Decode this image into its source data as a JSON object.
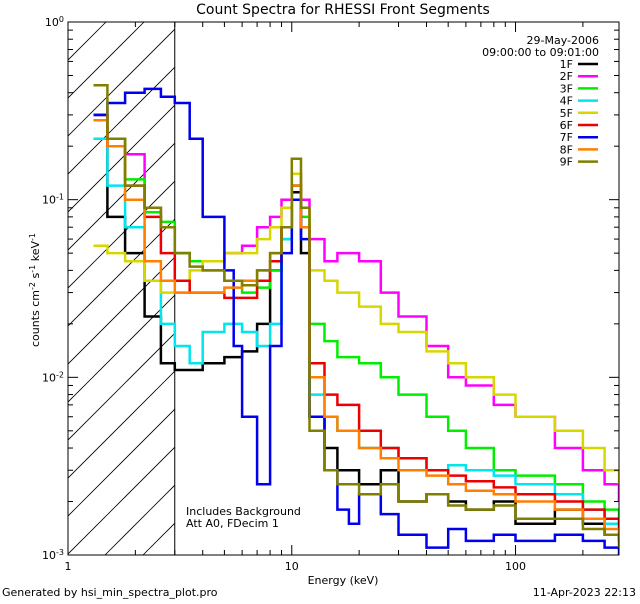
{
  "chart_data": {
    "type": "line",
    "title": "Count Spectra for RHESSI Front Segments",
    "xlabel": "Energy (keV)",
    "ylabel_main": "counts cm",
    "ylabel_sup1": "-2",
    "ylabel_mid": " s",
    "ylabel_sup2": "-1",
    "ylabel_end": " keV",
    "ylabel_sup3": "-1",
    "x_scale": "log",
    "y_scale": "log",
    "xlim": [
      1.0,
      290
    ],
    "ylim": [
      0.001,
      1.0
    ],
    "x_ticks": [
      {
        "value": 1,
        "label": "1"
      },
      {
        "value": 10,
        "label": "10"
      },
      {
        "value": 100,
        "label": "100"
      }
    ],
    "y_ticks": [
      {
        "value": 0.001,
        "base": "10",
        "exp": "-3"
      },
      {
        "value": 0.01,
        "base": "10",
        "exp": "-2"
      },
      {
        "value": 0.1,
        "base": "10",
        "exp": "-1"
      },
      {
        "value": 1.0,
        "base": "10",
        "exp": "0"
      }
    ],
    "date": "29-May-2006",
    "time_range": "09:00:00 to 09:01:00",
    "annotation_line1": "Includes Background",
    "annotation_line2": "Att A0, FDecim 1",
    "hatched_region_max_kev": 3.0,
    "legend_position": "top-right",
    "footer_left": "Generated by hsi_min_spectra_plot.pro",
    "footer_right": "11-Apr-2023 22:13",
    "series": [
      {
        "name": "1F",
        "color": "#000000",
        "x": [
          1.3,
          1.5,
          1.8,
          2.2,
          2.6,
          3.0,
          3.5,
          4.0,
          5,
          6,
          7,
          8,
          9,
          10,
          11,
          12,
          14,
          16,
          20,
          25,
          30,
          40,
          50,
          60,
          80,
          100,
          150,
          200,
          250,
          290
        ],
        "y": [
          0.3,
          0.08,
          0.05,
          0.022,
          0.012,
          0.011,
          0.011,
          0.012,
          0.013,
          0.014,
          0.02,
          0.04,
          0.07,
          0.11,
          0.05,
          0.006,
          0.004,
          0.003,
          0.0025,
          0.003,
          0.002,
          0.0022,
          0.002,
          0.0018,
          0.002,
          0.0015,
          0.0018,
          0.0015,
          0.0013,
          0.0012
        ]
      },
      {
        "name": "2F",
        "color": "#ff00ff",
        "x": [
          1.3,
          1.5,
          1.8,
          2.2,
          2.6,
          3.0,
          3.5,
          4.0,
          5,
          6,
          7,
          8,
          9,
          10,
          11,
          12,
          14,
          16,
          20,
          25,
          30,
          40,
          50,
          60,
          80,
          100,
          150,
          200,
          250,
          290
        ],
        "y": [
          0.3,
          0.22,
          0.18,
          0.09,
          0.07,
          0.05,
          0.045,
          0.045,
          0.05,
          0.055,
          0.07,
          0.08,
          0.1,
          0.14,
          0.1,
          0.06,
          0.045,
          0.05,
          0.045,
          0.03,
          0.022,
          0.015,
          0.01,
          0.009,
          0.007,
          0.006,
          0.004,
          0.003,
          0.0025,
          0.002
        ]
      },
      {
        "name": "3F",
        "color": "#00ee00",
        "x": [
          1.3,
          1.5,
          1.8,
          2.2,
          2.6,
          3.0,
          3.5,
          4.0,
          5,
          6,
          7,
          8,
          9,
          10,
          11,
          12,
          14,
          16,
          20,
          25,
          30,
          40,
          50,
          60,
          80,
          100,
          150,
          200,
          250,
          290
        ],
        "y": [
          0.3,
          0.22,
          0.13,
          0.085,
          0.075,
          0.05,
          0.045,
          0.04,
          0.035,
          0.03,
          0.032,
          0.04,
          0.06,
          0.12,
          0.08,
          0.02,
          0.016,
          0.013,
          0.012,
          0.01,
          0.008,
          0.006,
          0.005,
          0.004,
          0.003,
          0.0028,
          0.0025,
          0.002,
          0.0018,
          0.0015
        ]
      },
      {
        "name": "4F",
        "color": "#00e5ee",
        "x": [
          1.3,
          1.5,
          1.8,
          2.2,
          2.6,
          3.0,
          3.5,
          4.0,
          5,
          6,
          7,
          8,
          9,
          10,
          11,
          12,
          14,
          16,
          20,
          25,
          30,
          40,
          50,
          60,
          80,
          100,
          150,
          200,
          250,
          290
        ],
        "y": [
          0.22,
          0.12,
          0.07,
          0.035,
          0.02,
          0.015,
          0.012,
          0.018,
          0.02,
          0.018,
          0.015,
          0.02,
          0.06,
          0.12,
          0.07,
          0.008,
          0.006,
          0.005,
          0.004,
          0.004,
          0.0035,
          0.003,
          0.0032,
          0.003,
          0.0028,
          0.0025,
          0.0022,
          0.0018,
          0.0015,
          0.0013
        ]
      },
      {
        "name": "5F",
        "color": "#d7d700",
        "x": [
          1.3,
          1.5,
          1.8,
          2.2,
          2.6,
          3.0,
          3.5,
          4.0,
          5,
          6,
          7,
          8,
          9,
          10,
          11,
          12,
          14,
          16,
          20,
          25,
          30,
          40,
          50,
          60,
          80,
          100,
          150,
          200,
          250,
          290
        ],
        "y": [
          0.055,
          0.05,
          0.045,
          0.035,
          0.03,
          0.03,
          0.04,
          0.045,
          0.05,
          0.05,
          0.06,
          0.07,
          0.09,
          0.14,
          0.09,
          0.04,
          0.035,
          0.03,
          0.025,
          0.02,
          0.018,
          0.014,
          0.012,
          0.01,
          0.008,
          0.006,
          0.005,
          0.004,
          0.003,
          0.0025
        ]
      },
      {
        "name": "6F",
        "color": "#ee0000",
        "x": [
          1.3,
          1.5,
          1.8,
          2.2,
          2.6,
          3.0,
          3.5,
          4.0,
          5,
          6,
          7,
          8,
          9,
          10,
          11,
          12,
          14,
          16,
          20,
          25,
          30,
          40,
          50,
          60,
          80,
          100,
          150,
          200,
          250,
          290
        ],
        "y": [
          0.3,
          0.2,
          0.12,
          0.08,
          0.05,
          0.035,
          0.03,
          0.03,
          0.028,
          0.028,
          0.035,
          0.045,
          0.07,
          0.12,
          0.07,
          0.012,
          0.008,
          0.007,
          0.005,
          0.004,
          0.0035,
          0.003,
          0.0028,
          0.0026,
          0.0024,
          0.0022,
          0.002,
          0.0018,
          0.0016,
          0.0014
        ]
      },
      {
        "name": "7F",
        "color": "#0000ee",
        "x": [
          1.3,
          1.5,
          1.8,
          2.2,
          2.6,
          3.0,
          3.5,
          4.0,
          5,
          5.5,
          6,
          7,
          8,
          9,
          10,
          11,
          12,
          14,
          16,
          18,
          20,
          25,
          30,
          40,
          50,
          60,
          80,
          100,
          150,
          200,
          250,
          290
        ],
        "y": [
          0.3,
          0.35,
          0.4,
          0.42,
          0.38,
          0.35,
          0.22,
          0.08,
          0.04,
          0.015,
          0.006,
          0.0025,
          0.015,
          0.05,
          0.1,
          0.06,
          0.006,
          0.003,
          0.0018,
          0.0015,
          0.0022,
          0.0017,
          0.0013,
          0.0011,
          0.0014,
          0.0012,
          0.0013,
          0.0012,
          0.0013,
          0.0012,
          0.0011,
          0.001
        ]
      },
      {
        "name": "8F",
        "color": "#ff7f00",
        "x": [
          1.3,
          1.5,
          1.8,
          2.2,
          2.6,
          3.0,
          3.5,
          4.0,
          5,
          6,
          7,
          8,
          9,
          10,
          11,
          12,
          14,
          16,
          20,
          25,
          30,
          40,
          50,
          60,
          80,
          100,
          150,
          200,
          250,
          290
        ],
        "y": [
          0.28,
          0.2,
          0.1,
          0.045,
          0.035,
          0.03,
          0.03,
          0.03,
          0.032,
          0.035,
          0.04,
          0.05,
          0.07,
          0.12,
          0.07,
          0.01,
          0.006,
          0.005,
          0.004,
          0.0035,
          0.003,
          0.0028,
          0.0025,
          0.0023,
          0.0022,
          0.002,
          0.0018,
          0.0016,
          0.0014,
          0.0012
        ]
      },
      {
        "name": "9F",
        "color": "#7f7f00",
        "x": [
          1.3,
          1.5,
          1.8,
          2.2,
          2.6,
          3.0,
          3.5,
          4.0,
          5,
          6,
          7,
          8,
          9,
          10,
          11,
          12,
          14,
          16,
          20,
          25,
          30,
          40,
          50,
          60,
          80,
          100,
          150,
          200,
          250,
          290
        ],
        "y": [
          0.44,
          0.22,
          0.12,
          0.09,
          0.07,
          0.05,
          0.042,
          0.04,
          0.035,
          0.033,
          0.04,
          0.05,
          0.07,
          0.17,
          0.09,
          0.005,
          0.003,
          0.0025,
          0.0022,
          0.0025,
          0.002,
          0.0022,
          0.0019,
          0.0018,
          0.0019,
          0.0016,
          0.0016,
          0.0014,
          0.0013,
          0.0011
        ]
      }
    ]
  }
}
